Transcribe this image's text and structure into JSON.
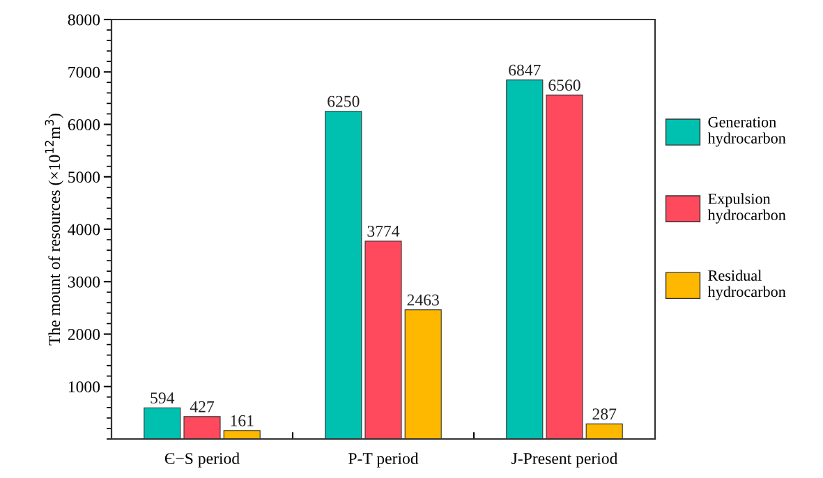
{
  "chart_data": {
    "type": "bar",
    "ylabel": "The mount of resources (×10$^{12}$m$^{3}$)",
    "categories": [
      "Є−S period",
      "P-T period",
      "J-Present period"
    ],
    "series": [
      {
        "name": "Generation hydrocarbon",
        "color": "#00c0b0",
        "values": [
          594,
          6250,
          6847
        ]
      },
      {
        "name": "Expulsion hydrocarbon",
        "color": "#ff4a5e",
        "values": [
          427,
          3774,
          6560
        ]
      },
      {
        "name": "Residual hydrocarbon",
        "color": "#ffb800",
        "values": [
          161,
          2463,
          287
        ]
      }
    ],
    "ylim": [
      0,
      8000
    ],
    "yticks": [
      1000,
      2000,
      3000,
      4000,
      5000,
      6000,
      7000,
      8000
    ],
    "data_labels": true,
    "legend": "right",
    "grid": false
  }
}
